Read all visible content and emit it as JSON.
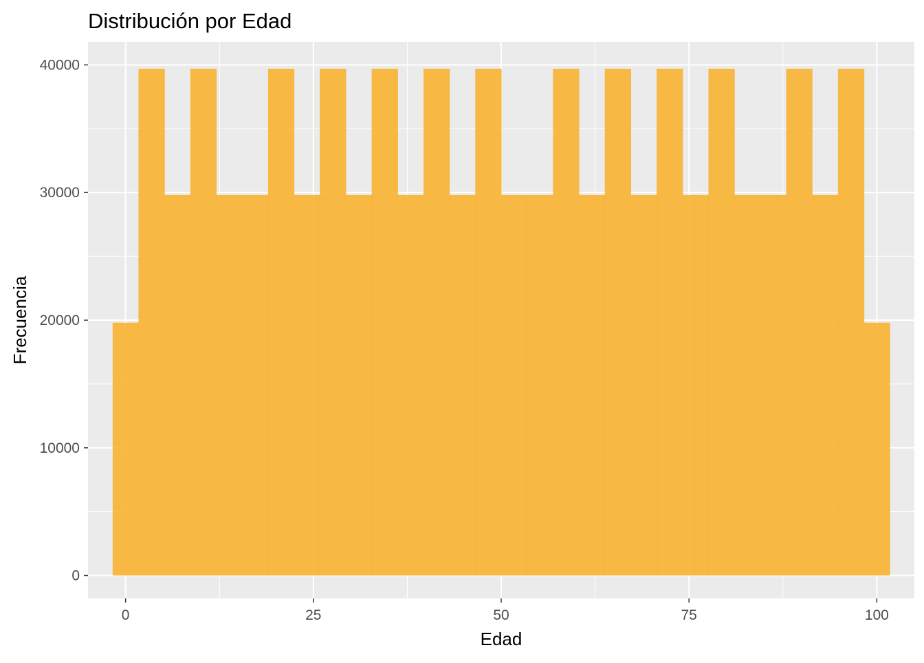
{
  "chart_data": {
    "type": "bar",
    "subtype": "histogram",
    "title": "Distribución por Edad",
    "xlabel": "Edad",
    "ylabel": "Frecuencia",
    "xlim": [
      -5,
      105
    ],
    "ylim": [
      -1800,
      41800
    ],
    "x_ticks": [
      0,
      25,
      50,
      75,
      100
    ],
    "x_tick_labels": [
      "0",
      "25",
      "50",
      "75",
      "100"
    ],
    "y_ticks": [
      0,
      10000,
      20000,
      30000,
      40000
    ],
    "y_tick_labels": [
      "0",
      "10000",
      "20000",
      "30000",
      "40000"
    ],
    "grid": true,
    "legend": "none",
    "bin_width": 3.448,
    "bins": [
      {
        "x0": -1.72,
        "x1": 1.72,
        "count": 19800
      },
      {
        "x0": 1.72,
        "x1": 5.17,
        "count": 39700
      },
      {
        "x0": 5.17,
        "x1": 8.62,
        "count": 29800
      },
      {
        "x0": 8.62,
        "x1": 12.07,
        "count": 39700
      },
      {
        "x0": 12.07,
        "x1": 15.52,
        "count": 29800
      },
      {
        "x0": 15.52,
        "x1": 18.97,
        "count": 29800
      },
      {
        "x0": 18.97,
        "x1": 22.41,
        "count": 39700
      },
      {
        "x0": 22.41,
        "x1": 25.86,
        "count": 29800
      },
      {
        "x0": 25.86,
        "x1": 29.31,
        "count": 39700
      },
      {
        "x0": 29.31,
        "x1": 32.76,
        "count": 29800
      },
      {
        "x0": 32.76,
        "x1": 36.21,
        "count": 39700
      },
      {
        "x0": 36.21,
        "x1": 39.66,
        "count": 29800
      },
      {
        "x0": 39.66,
        "x1": 43.1,
        "count": 39700
      },
      {
        "x0": 43.1,
        "x1": 46.55,
        "count": 29800
      },
      {
        "x0": 46.55,
        "x1": 50.0,
        "count": 39700
      },
      {
        "x0": 50.0,
        "x1": 53.45,
        "count": 29800
      },
      {
        "x0": 53.45,
        "x1": 56.9,
        "count": 29800
      },
      {
        "x0": 56.9,
        "x1": 60.34,
        "count": 39700
      },
      {
        "x0": 60.34,
        "x1": 63.79,
        "count": 29800
      },
      {
        "x0": 63.79,
        "x1": 67.24,
        "count": 39700
      },
      {
        "x0": 67.24,
        "x1": 70.69,
        "count": 29800
      },
      {
        "x0": 70.69,
        "x1": 74.14,
        "count": 39700
      },
      {
        "x0": 74.14,
        "x1": 77.59,
        "count": 29800
      },
      {
        "x0": 77.59,
        "x1": 81.03,
        "count": 39700
      },
      {
        "x0": 81.03,
        "x1": 84.48,
        "count": 29800
      },
      {
        "x0": 84.48,
        "x1": 87.93,
        "count": 29800
      },
      {
        "x0": 87.93,
        "x1": 91.38,
        "count": 39700
      },
      {
        "x0": 91.38,
        "x1": 94.83,
        "count": 29800
      },
      {
        "x0": 94.83,
        "x1": 98.28,
        "count": 39700
      },
      {
        "x0": 98.28,
        "x1": 101.72,
        "count": 19800
      }
    ],
    "colors": {
      "bar_fill": "#F8B232",
      "bar_opacity": 0.9,
      "panel_background": "#EBEBEB",
      "grid_major": "#FFFFFF",
      "tick_text": "#4D4D4D",
      "tick_mark": "#333333"
    }
  }
}
